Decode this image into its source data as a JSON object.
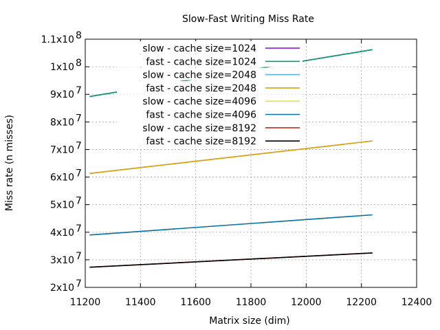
{
  "chart_data": {
    "type": "line",
    "title": "Slow-Fast Writing Miss Rate",
    "xlabel": "Matrix size (dim)",
    "ylabel": "Miss rate (n misses)",
    "xlim": [
      11200,
      12400
    ],
    "ylim": [
      20000000,
      110000000
    ],
    "x_ticks": [
      "11200",
      "11400",
      "11600",
      "11800",
      "12000",
      "12200",
      "12400"
    ],
    "x_tick_values": [
      11200,
      11400,
      11600,
      11800,
      12000,
      12200,
      12400
    ],
    "y_ticks": [
      {
        "value": 20000000,
        "mantissa": "2x10",
        "exp": "7"
      },
      {
        "value": 30000000,
        "mantissa": "3x10",
        "exp": "7"
      },
      {
        "value": 40000000,
        "mantissa": "4x10",
        "exp": "7"
      },
      {
        "value": 50000000,
        "mantissa": "5x10",
        "exp": "7"
      },
      {
        "value": 60000000,
        "mantissa": "6x10",
        "exp": "7"
      },
      {
        "value": 70000000,
        "mantissa": "7x10",
        "exp": "7"
      },
      {
        "value": 80000000,
        "mantissa": "8x10",
        "exp": "7"
      },
      {
        "value": 90000000,
        "mantissa": "9x10",
        "exp": "7"
      },
      {
        "value": 100000000,
        "mantissa": "1x10",
        "exp": "8"
      },
      {
        "value": 110000000,
        "mantissa": "1.1x10",
        "exp": "8"
      }
    ],
    "grid": true,
    "legend_position": "top-left",
    "series": [
      {
        "name": "slow - cache size=1024",
        "color": "#9400d3",
        "x": [
          11216,
          12240
        ],
        "values": [
          89200000,
          106200000
        ]
      },
      {
        "name": "fast - cache size=1024",
        "color": "#009e73",
        "x": [
          11216,
          12240
        ],
        "values": [
          89200000,
          106200000
        ]
      },
      {
        "name": "slow - cache size=2048",
        "color": "#56b4e9",
        "x": [
          11216,
          12240
        ],
        "values": [
          61300000,
          73100000
        ]
      },
      {
        "name": "fast - cache size=2048",
        "color": "#e69f00",
        "x": [
          11216,
          12240
        ],
        "values": [
          61300000,
          73100000
        ]
      },
      {
        "name": "slow - cache size=4096",
        "color": "#f0e442",
        "x": [
          11216,
          12240
        ],
        "values": [
          39000000,
          46300000
        ]
      },
      {
        "name": "fast - cache size=4096",
        "color": "#0072b2",
        "x": [
          11216,
          12240
        ],
        "values": [
          39000000,
          46300000
        ]
      },
      {
        "name": "slow - cache size=8192",
        "color": "#e51e10",
        "x": [
          11216,
          12240
        ],
        "values": [
          27300000,
          32500000
        ]
      },
      {
        "name": "fast - cache size=8192",
        "color": "#000000",
        "x": [
          11216,
          12240
        ],
        "values": [
          27300000,
          32500000
        ]
      }
    ]
  }
}
